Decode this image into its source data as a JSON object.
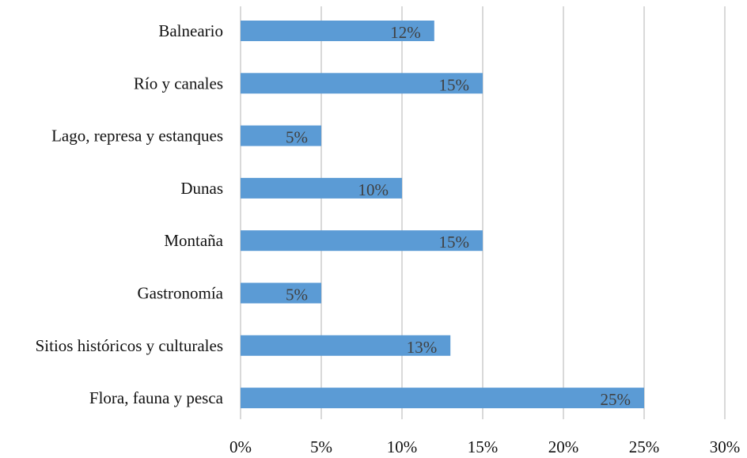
{
  "chart_data": {
    "type": "bar",
    "orientation": "horizontal",
    "categories": [
      "Balneario",
      "Río y canales",
      "Lago, represa y estanques",
      "Dunas",
      "Montaña",
      "Gastronomía",
      "Sitios históricos y culturales",
      "Flora, fauna y pesca"
    ],
    "values": [
      12,
      15,
      5,
      10,
      15,
      5,
      13,
      25
    ],
    "value_labels": [
      "12%",
      "15%",
      "5%",
      "10%",
      "15%",
      "5%",
      "13%",
      "25%"
    ],
    "x_ticks": [
      "0%",
      "5%",
      "10%",
      "15%",
      "20%",
      "25%",
      "30%"
    ],
    "xlim": [
      0,
      30
    ],
    "title": "",
    "xlabel": "",
    "ylabel": "",
    "grid": "vertical",
    "legend": "none",
    "colors": {
      "bar": "#5b9bd5",
      "grid": "#d9d9d9"
    }
  }
}
